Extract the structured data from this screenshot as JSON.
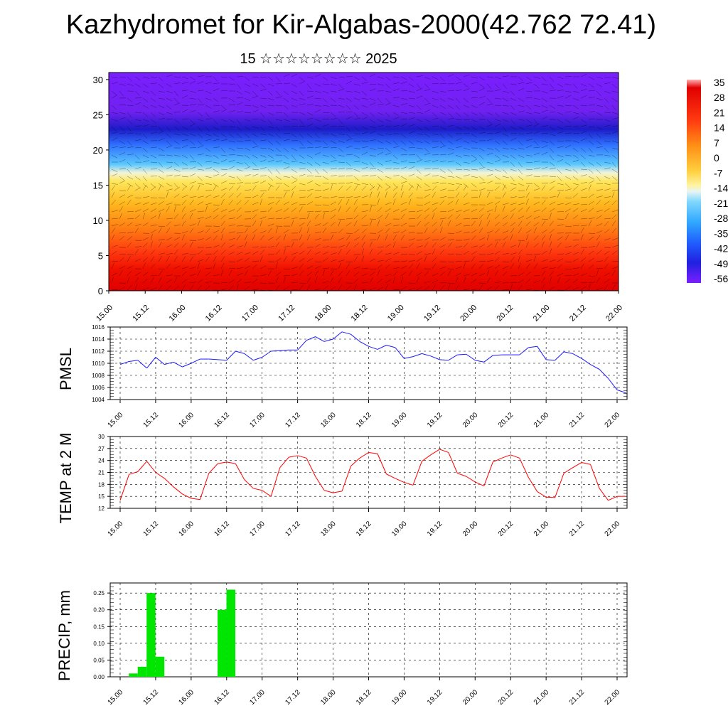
{
  "title": "Kazhydromet for Kir-Algabas-2000(42.762 72.41)",
  "subtitle": "15 ☆☆☆☆☆☆☆☆ 2025",
  "time_ticks": [
    "15.00",
    "15.12",
    "16.00",
    "16.12",
    "17.00",
    "17.12",
    "18.00",
    "18.12",
    "19.00",
    "19.12",
    "20.00",
    "20.12",
    "21.00",
    "21.12",
    "22.00"
  ],
  "chart_data": [
    {
      "type": "heatmap",
      "title": "",
      "xlabel": "",
      "ylabel": "",
      "x": [
        "15.00",
        "15.12",
        "16.00",
        "16.12",
        "17.00",
        "17.12",
        "18.00",
        "18.12",
        "19.00",
        "19.12",
        "20.00",
        "20.12",
        "21.00",
        "21.12",
        "22.00"
      ],
      "y_ticks": [
        0,
        5,
        10,
        15,
        20,
        25,
        30
      ],
      "ylim": [
        0,
        31
      ],
      "colorbar": {
        "labels": [
          "35",
          "28",
          "21",
          "14",
          "7",
          "0",
          "-7",
          "-14",
          "-21",
          "-28",
          "-35",
          "-42",
          "-49",
          "-56"
        ],
        "range": [
          -63,
          42
        ],
        "stops": [
          "#7a1fff",
          "#2020e0",
          "#2a7fff",
          "#46c8ff",
          "#ffffff",
          "#ffe050",
          "#ffa010",
          "#ff5010",
          "#e00000",
          "#c80000",
          "#ff9f9f"
        ]
      },
      "overlay": "wind barbs"
    },
    {
      "type": "line",
      "ylabel": "PMSL",
      "ylim": [
        1004,
        1016
      ],
      "y_ticks": [
        1004,
        1006,
        1008,
        1010,
        1012,
        1014,
        1016
      ],
      "color": "#1a1aff",
      "series": [
        {
          "values": [
            1009.8,
            1010.3,
            1010.5,
            1009.2,
            1011.0,
            1009.8,
            1010.2,
            1009.4,
            1010.0,
            1010.7,
            1010.7,
            1010.6,
            1010.5,
            1012.0,
            1011.6,
            1010.5,
            1011.0,
            1012.0,
            1012.1,
            1012.2,
            1012.2,
            1013.8,
            1014.4,
            1013.6,
            1014.0,
            1015.2,
            1014.8,
            1013.6,
            1012.8,
            1012.3,
            1013.0,
            1012.6,
            1010.8,
            1011.1,
            1011.6,
            1011.2,
            1010.6,
            1010.5,
            1011.4,
            1011.5,
            1010.5,
            1010.2,
            1011.3,
            1011.4,
            1011.4,
            1011.4,
            1012.6,
            1012.8,
            1010.6,
            1010.5,
            1011.9,
            1011.6,
            1010.8,
            1009.8,
            1009.0,
            1007.5,
            1005.6,
            1005.1
          ]
        }
      ]
    },
    {
      "type": "line",
      "ylabel": "TEMP at 2 M",
      "ylim": [
        12,
        30
      ],
      "y_ticks": [
        12,
        15,
        18,
        21,
        24,
        27,
        30
      ],
      "color": "#ff0000",
      "series": [
        {
          "values": [
            14.0,
            20.5,
            21.2,
            23.8,
            21.0,
            19.5,
            17.4,
            15.6,
            14.5,
            14.2,
            20.8,
            23.2,
            23.6,
            23.2,
            19.2,
            17.0,
            16.5,
            15.0,
            22.2,
            24.8,
            25.2,
            24.6,
            20.0,
            16.5,
            15.9,
            16.3,
            22.6,
            24.6,
            26.0,
            25.7,
            20.6,
            19.5,
            18.5,
            17.8,
            23.8,
            25.4,
            26.8,
            26.0,
            20.8,
            20.0,
            18.6,
            17.6,
            23.6,
            24.6,
            25.4,
            24.6,
            19.8,
            16.2,
            14.8,
            14.7,
            20.8,
            22.2,
            23.5,
            23.0,
            17.0,
            14.0,
            15.0,
            15.0
          ]
        }
      ]
    },
    {
      "type": "bar",
      "ylabel": "PRECIP, mm",
      "ylim": [
        0,
        0.28
      ],
      "y_ticks": [
        "0.00",
        "0.05",
        "0.10",
        "0.15",
        "0.20",
        "0.25"
      ],
      "color": "#00e600",
      "values": [
        0,
        0.01,
        0.03,
        0.25,
        0.06,
        0,
        0,
        0,
        0,
        0,
        0,
        0.2,
        0.26,
        0,
        0,
        0,
        0,
        0,
        0,
        0,
        0,
        0,
        0,
        0,
        0,
        0,
        0,
        0,
        0,
        0,
        0,
        0,
        0,
        0,
        0,
        0,
        0,
        0,
        0,
        0,
        0,
        0,
        0,
        0,
        0,
        0,
        0,
        0,
        0,
        0,
        0,
        0,
        0,
        0,
        0,
        0,
        0,
        0
      ]
    }
  ]
}
